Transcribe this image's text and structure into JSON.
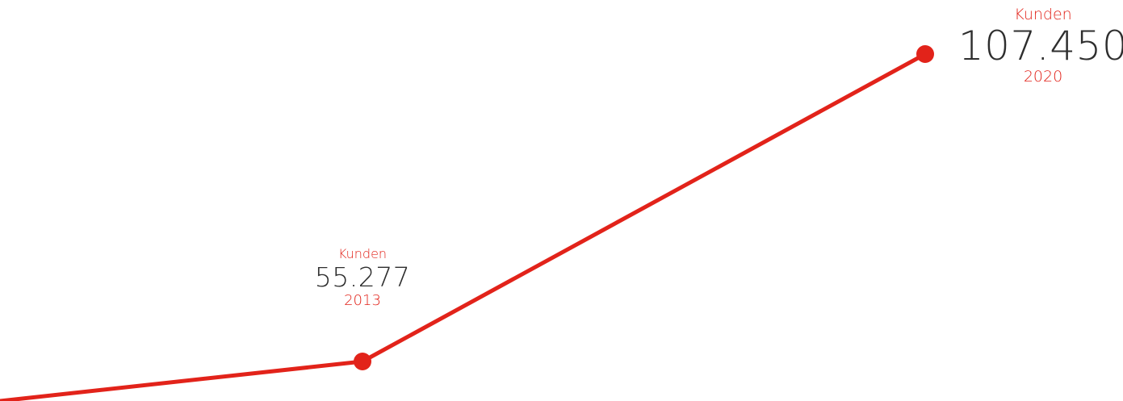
{
  "chart_data": {
    "type": "line",
    "series": [
      {
        "values": [
          55277,
          107450
        ],
        "color": "#e2231a"
      }
    ],
    "x": [
      "2013",
      "2020"
    ],
    "points": [
      {
        "label": "Kunden",
        "value_text": "55.277",
        "year": "2013",
        "x": 2013,
        "y": 55277
      },
      {
        "label": "Kunden",
        "value_text": "107.450",
        "year": "2020",
        "x": 2020,
        "y": 107450
      }
    ],
    "line_start_from_left_edge": true,
    "title": "",
    "xlabel": "",
    "ylabel": "",
    "grid": false,
    "legend": "none"
  }
}
